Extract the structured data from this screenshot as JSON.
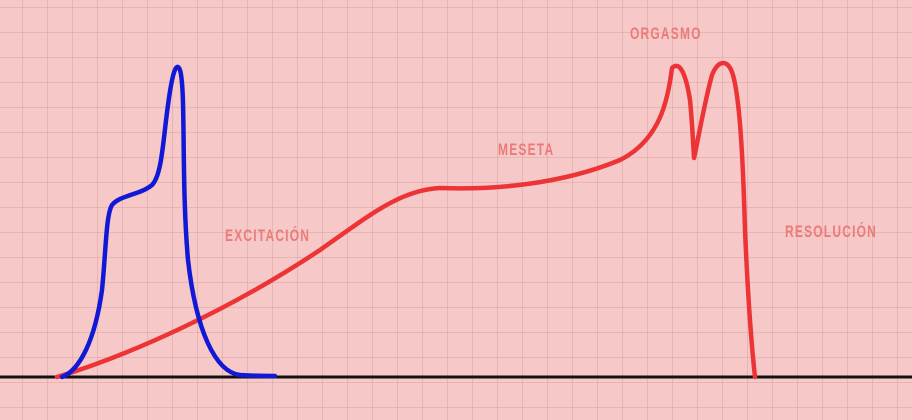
{
  "labels": {
    "excitacion": "EXCITACIÓN",
    "meseta": "MESETA",
    "orgasmo": "ORGASMO",
    "resolucion": "RESOLUCIÓN"
  },
  "colors": {
    "background": "#f6c9c8",
    "male_curve": "#1219d6",
    "female_curve": "#ec3436",
    "baseline": "#111111",
    "label_text": "#ea7b78"
  }
}
